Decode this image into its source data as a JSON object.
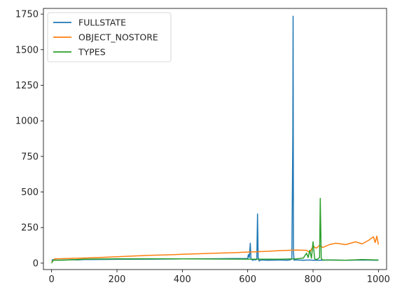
{
  "chart_data": {
    "type": "line",
    "title": "",
    "xlabel": "",
    "ylabel": "",
    "xlim": [
      -25,
      1025
    ],
    "ylim": [
      -45,
      1790
    ],
    "xticks": [
      0,
      200,
      400,
      600,
      800,
      1000
    ],
    "yticks": [
      0,
      250,
      500,
      750,
      1000,
      1250,
      1500,
      1750
    ],
    "grid": false,
    "legend_position": "top-left",
    "series": [
      {
        "name": "FULLSTATE",
        "color": "#1f77b4",
        "x": [
          0,
          5,
          10,
          20,
          40,
          60,
          80,
          100,
          150,
          200,
          300,
          400,
          500,
          550,
          600,
          602,
          605,
          608,
          610,
          615,
          620,
          625,
          628,
          630,
          632,
          635,
          640,
          660,
          680,
          700,
          720,
          730,
          735,
          738,
          739,
          740,
          742,
          745,
          750,
          770,
          790,
          800,
          820,
          850,
          900,
          950,
          1000
        ],
        "y": [
          20,
          25,
          22,
          21,
          22,
          24,
          23,
          25,
          26,
          27,
          28,
          30,
          31,
          32,
          33,
          60,
          40,
          140,
          30,
          20,
          25,
          22,
          30,
          345,
          40,
          15,
          22,
          20,
          21,
          22,
          20,
          23,
          30,
          900,
          1735,
          80,
          20,
          22,
          22,
          20,
          22,
          20,
          20,
          22,
          20,
          22,
          20
        ]
      },
      {
        "name": "OBJECT_NOSTORE",
        "color": "#ff7f0e",
        "x": [
          0,
          10,
          50,
          100,
          150,
          200,
          250,
          300,
          350,
          400,
          450,
          500,
          550,
          600,
          650,
          700,
          750,
          780,
          790,
          800,
          810,
          820,
          830,
          850,
          870,
          900,
          930,
          950,
          970,
          985,
          990,
          995,
          1000
        ],
        "y": [
          10,
          30,
          33,
          36,
          40,
          45,
          50,
          55,
          58,
          62,
          66,
          70,
          73,
          78,
          82,
          88,
          92,
          90,
          75,
          120,
          105,
          125,
          110,
          130,
          140,
          130,
          150,
          135,
          160,
          185,
          145,
          190,
          130
        ]
      },
      {
        "name": "TYPES",
        "color": "#2ca02c",
        "x": [
          0,
          5,
          20,
          50,
          100,
          200,
          300,
          400,
          500,
          600,
          650,
          700,
          750,
          770,
          780,
          785,
          790,
          795,
          800,
          805,
          810,
          815,
          820,
          822,
          825,
          830,
          850,
          900,
          950,
          1000
        ],
        "y": [
          0,
          20,
          20,
          22,
          28,
          30,
          30,
          30,
          29,
          28,
          28,
          28,
          30,
          35,
          70,
          40,
          90,
          35,
          150,
          30,
          25,
          30,
          40,
          455,
          30,
          22,
          22,
          20,
          25,
          22
        ]
      }
    ]
  }
}
